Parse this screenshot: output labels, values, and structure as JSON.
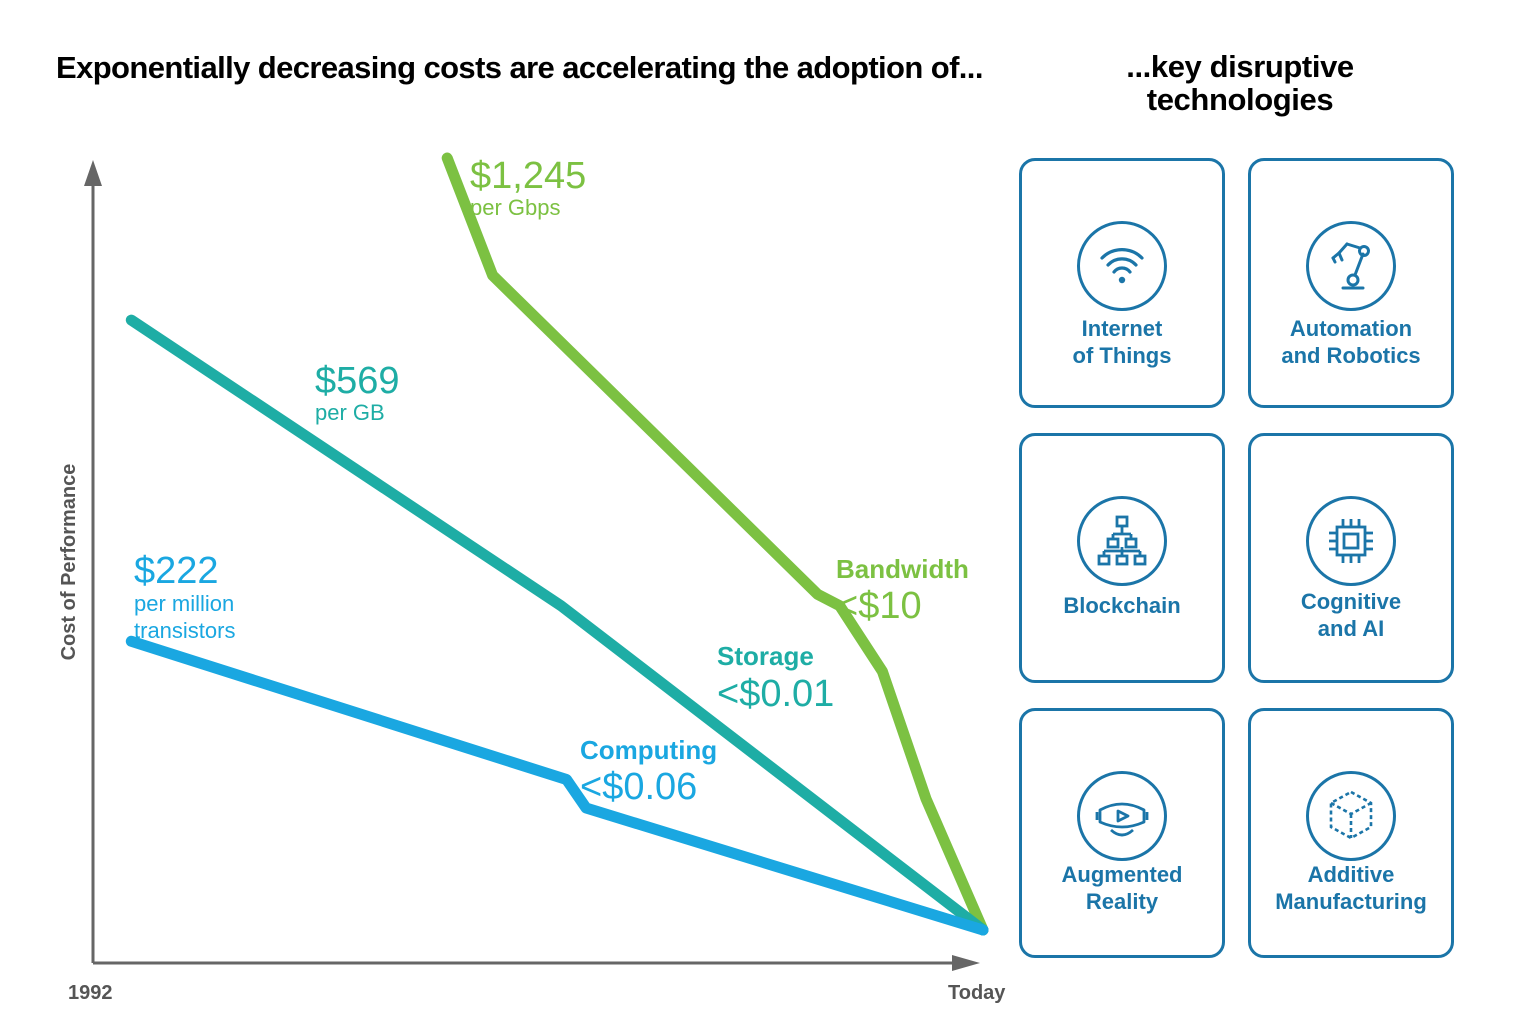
{
  "title_left": "Exponentially decreasing costs are accelerating the adoption of...",
  "title_right": "...key disruptive technologies",
  "colors": {
    "bandwidth": "#7cc142",
    "storage": "#1eada5",
    "computing": "#1aa7e1",
    "axis": "#666666",
    "card": "#1b75a8"
  },
  "chart_data": {
    "type": "line",
    "title": "Exponentially decreasing costs are accelerating the adoption of...",
    "ylabel": "Cost of Performance",
    "xlabel": "",
    "x_tick_labels": [
      "1992",
      "Today"
    ],
    "xlim": [
      0,
      100
    ],
    "ylim": [
      0,
      100
    ],
    "grid": false,
    "series": [
      {
        "name": "Bandwidth",
        "key": "bandwidth",
        "start_value": "$1,245",
        "start_unit": "per Gbps",
        "end_value": "<$10",
        "points": [
          [
            39.8,
            100
          ],
          [
            44.9,
            84.8
          ],
          [
            81.4,
            43.5
          ],
          [
            83.9,
            42.0
          ],
          [
            88.7,
            33.5
          ],
          [
            93.6,
            17.0
          ],
          [
            100,
            0
          ]
        ]
      },
      {
        "name": "Storage",
        "key": "storage",
        "start_value": "$569",
        "start_unit": "per GB",
        "end_value": "<$0.01",
        "points": [
          [
            4.3,
            79.0
          ],
          [
            52.6,
            42.0
          ],
          [
            100,
            0
          ]
        ]
      },
      {
        "name": "Computing",
        "key": "computing",
        "start_value": "$222",
        "start_unit": "per million transistors",
        "end_value": "<$0.06",
        "points": [
          [
            4.3,
            37.4
          ],
          [
            53.2,
            19.5
          ],
          [
            55.4,
            15.8
          ],
          [
            100,
            0
          ]
        ]
      }
    ]
  },
  "technologies": [
    {
      "label": "Internet\nof Things",
      "icon": "wifi-icon"
    },
    {
      "label": "Automation\nand Robotics",
      "icon": "robot-arm-icon"
    },
    {
      "label": "Blockchain",
      "icon": "hierarchy-icon"
    },
    {
      "label": "Cognitive\nand AI",
      "icon": "chip-icon"
    },
    {
      "label": "Augmented\nReality",
      "icon": "vr-headset-icon"
    },
    {
      "label": "Additive\nManufacturing",
      "icon": "cube-icon"
    }
  ]
}
